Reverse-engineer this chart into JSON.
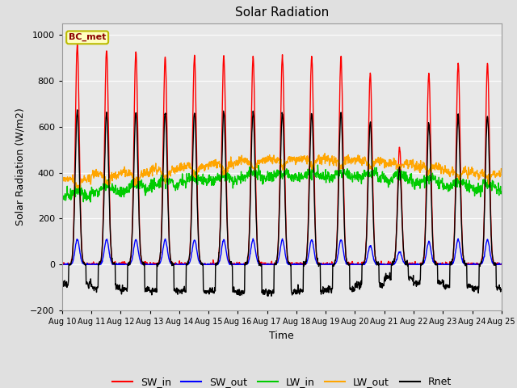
{
  "title": "Solar Radiation",
  "xlabel": "Time",
  "ylabel": "Solar Radiation (W/m2)",
  "ylim": [
    -200,
    1050
  ],
  "yticks": [
    -200,
    0,
    200,
    400,
    600,
    800,
    1000
  ],
  "xtick_labels": [
    "Aug 10",
    "Aug 11",
    "Aug 12",
    "Aug 13",
    "Aug 14",
    "Aug 15",
    "Aug 16",
    "Aug 17",
    "Aug 18",
    "Aug 19",
    "Aug 20",
    "Aug 21",
    "Aug 22",
    "Aug 23",
    "Aug 24",
    "Aug 25"
  ],
  "colors": {
    "SW_in": "#ff0000",
    "SW_out": "#0000ff",
    "LW_in": "#00cc00",
    "LW_out": "#ffa500",
    "Rnet": "#000000"
  },
  "legend_label": "BC_met",
  "background_color": "#e0e0e0",
  "plot_bg_color": "#e8e8e8",
  "title_fontsize": 11,
  "axis_fontsize": 9,
  "tick_fontsize": 8,
  "legend_fontsize": 9,
  "linewidth": 1.0,
  "n_days": 15,
  "SW_in_peaks": [
    960,
    935,
    925,
    905,
    905,
    905,
    905,
    905,
    905,
    905,
    828,
    510,
    830,
    880,
    880
  ],
  "SW_out_peaks": [
    110,
    110,
    108,
    108,
    108,
    108,
    108,
    108,
    108,
    108,
    82,
    55,
    98,
    108,
    108
  ],
  "LW_in_base": [
    295,
    315,
    325,
    345,
    360,
    368,
    378,
    383,
    383,
    383,
    378,
    368,
    355,
    335,
    325
  ],
  "LW_in_midday_dip": [
    15,
    15,
    18,
    20,
    22,
    22,
    24,
    26,
    24,
    24,
    22,
    20,
    20,
    18,
    18
  ],
  "LW_out_base": [
    370,
    390,
    400,
    415,
    430,
    440,
    455,
    460,
    460,
    455,
    450,
    440,
    425,
    405,
    395
  ],
  "LW_out_midday_dip": [
    80,
    90,
    95,
    90,
    90,
    88,
    85,
    82,
    82,
    80,
    75,
    65,
    70,
    75,
    72
  ],
  "Rnet_peaks": [
    670,
    660,
    665,
    665,
    660,
    665,
    665,
    660,
    660,
    660,
    620,
    420,
    610,
    645,
    645
  ],
  "Rnet_night": [
    -85,
    -100,
    -110,
    -115,
    -115,
    -115,
    -120,
    -120,
    -115,
    -108,
    -88,
    -55,
    -80,
    -95,
    -105
  ]
}
